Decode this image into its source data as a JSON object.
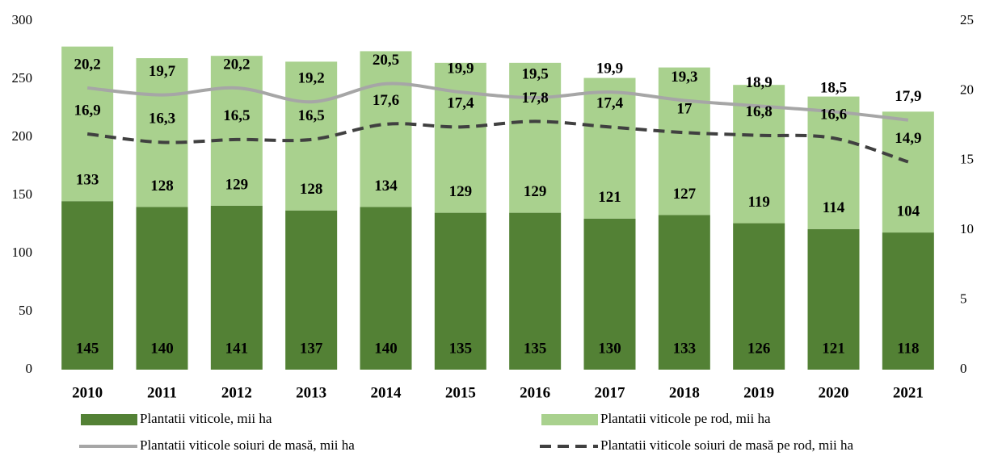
{
  "chart_data": {
    "type": "bar",
    "categories": [
      "2010",
      "2011",
      "2012",
      "2013",
      "2014",
      "2015",
      "2016",
      "2017",
      "2018",
      "2019",
      "2020",
      "2021"
    ],
    "series": [
      {
        "name": "Plantatii viticole, mii ha",
        "type": "bar",
        "color": "#538135",
        "values": [
          145,
          140,
          141,
          137,
          140,
          135,
          135,
          130,
          133,
          126,
          121,
          118
        ]
      },
      {
        "name": "Plantatii viticole pe rod, mii ha",
        "type": "bar",
        "color": "#a9d18e",
        "values": [
          133,
          128,
          129,
          128,
          134,
          129,
          129,
          121,
          127,
          119,
          114,
          104
        ]
      },
      {
        "name": "Plantatii viticole soiuri de masă, mii ha",
        "type": "line",
        "axis": "y2",
        "color": "#a6a6a6",
        "dashed": false,
        "values": [
          20.2,
          19.7,
          20.2,
          19.2,
          20.5,
          19.9,
          19.5,
          19.9,
          19.3,
          18.9,
          18.5,
          17.9
        ],
        "value_labels": [
          "20,2",
          "19,7",
          "20,2",
          "19,2",
          "20,5",
          "19,9",
          "19,5",
          "19,9",
          "19,3",
          "18,9",
          "18,5",
          "17,9"
        ]
      },
      {
        "name": "Plantatii viticole soiuri de masă pe rod, mii ha",
        "type": "line",
        "axis": "y2",
        "color": "#404040",
        "dashed": true,
        "values": [
          16.9,
          16.3,
          16.5,
          16.5,
          17.6,
          17.4,
          17.8,
          17.4,
          17,
          16.8,
          16.6,
          14.9
        ],
        "value_labels": [
          "16,9",
          "16,3",
          "16,5",
          "16,5",
          "17,6",
          "17,4",
          "17,8",
          "17,4",
          "17",
          "16,8",
          "16,6",
          "14,9"
        ]
      }
    ],
    "stacked": true,
    "ylim": [
      0,
      300
    ],
    "yticks": [
      0,
      50,
      100,
      150,
      200,
      250,
      300
    ],
    "y2lim": [
      0,
      25
    ],
    "y2ticks": [
      0,
      5,
      10,
      15,
      20,
      25
    ]
  }
}
